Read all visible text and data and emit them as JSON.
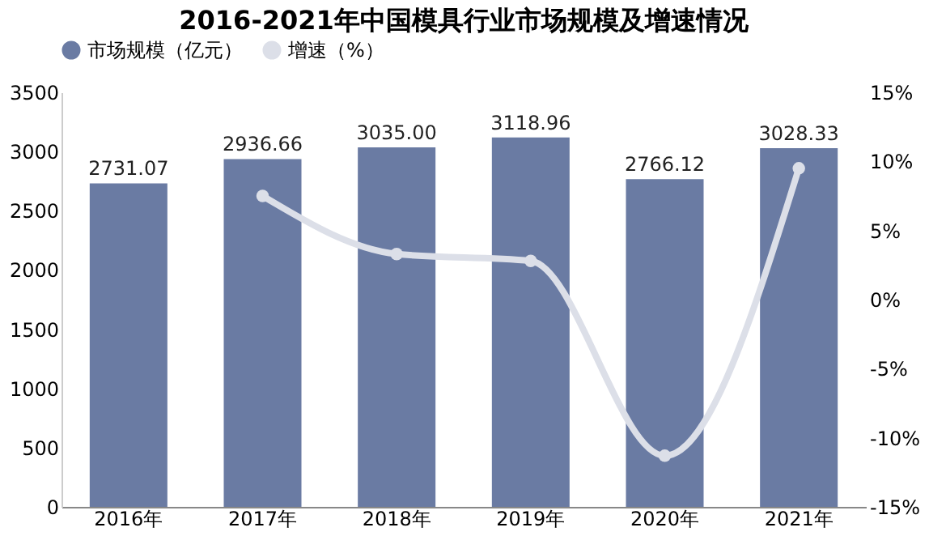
{
  "chart_data": {
    "type": "bar",
    "title": "2016-2021年中国模具行业市场规模及增速情况",
    "categories": [
      "2016年",
      "2017年",
      "2018年",
      "2019年",
      "2020年",
      "2021年"
    ],
    "series": [
      {
        "name": "市场规模（亿元）",
        "color": "#6a7ba3",
        "values": [
          2731.07,
          2936.66,
          3035.0,
          3118.96,
          2766.12,
          3028.33
        ],
        "value_labels": [
          "2731.07",
          "2936.66",
          "3035.00",
          "3118.96",
          "2766.12",
          "3028.33"
        ]
      },
      {
        "name": "增速（%）",
        "type": "line",
        "axis": "y2",
        "color": "#dcdfe8",
        "marker": "circle",
        "values": [
          null,
          7.5,
          3.3,
          2.8,
          -11.3,
          9.5
        ]
      }
    ],
    "ylim": [
      0,
      3500
    ],
    "yticks": [
      0,
      500,
      1000,
      1500,
      2000,
      2500,
      3000,
      3500
    ],
    "y2lim": [
      -15,
      15
    ],
    "y2ticks": [
      {
        "value": -15,
        "label": "-15%"
      },
      {
        "value": -10,
        "label": "-10%"
      },
      {
        "value": -5,
        "label": "-5%"
      },
      {
        "value": 0,
        "label": "0%"
      },
      {
        "value": 5,
        "label": "5%"
      },
      {
        "value": 10,
        "label": "10%"
      },
      {
        "value": 15,
        "label": "15%"
      }
    ],
    "legend": "top",
    "grid": false
  }
}
